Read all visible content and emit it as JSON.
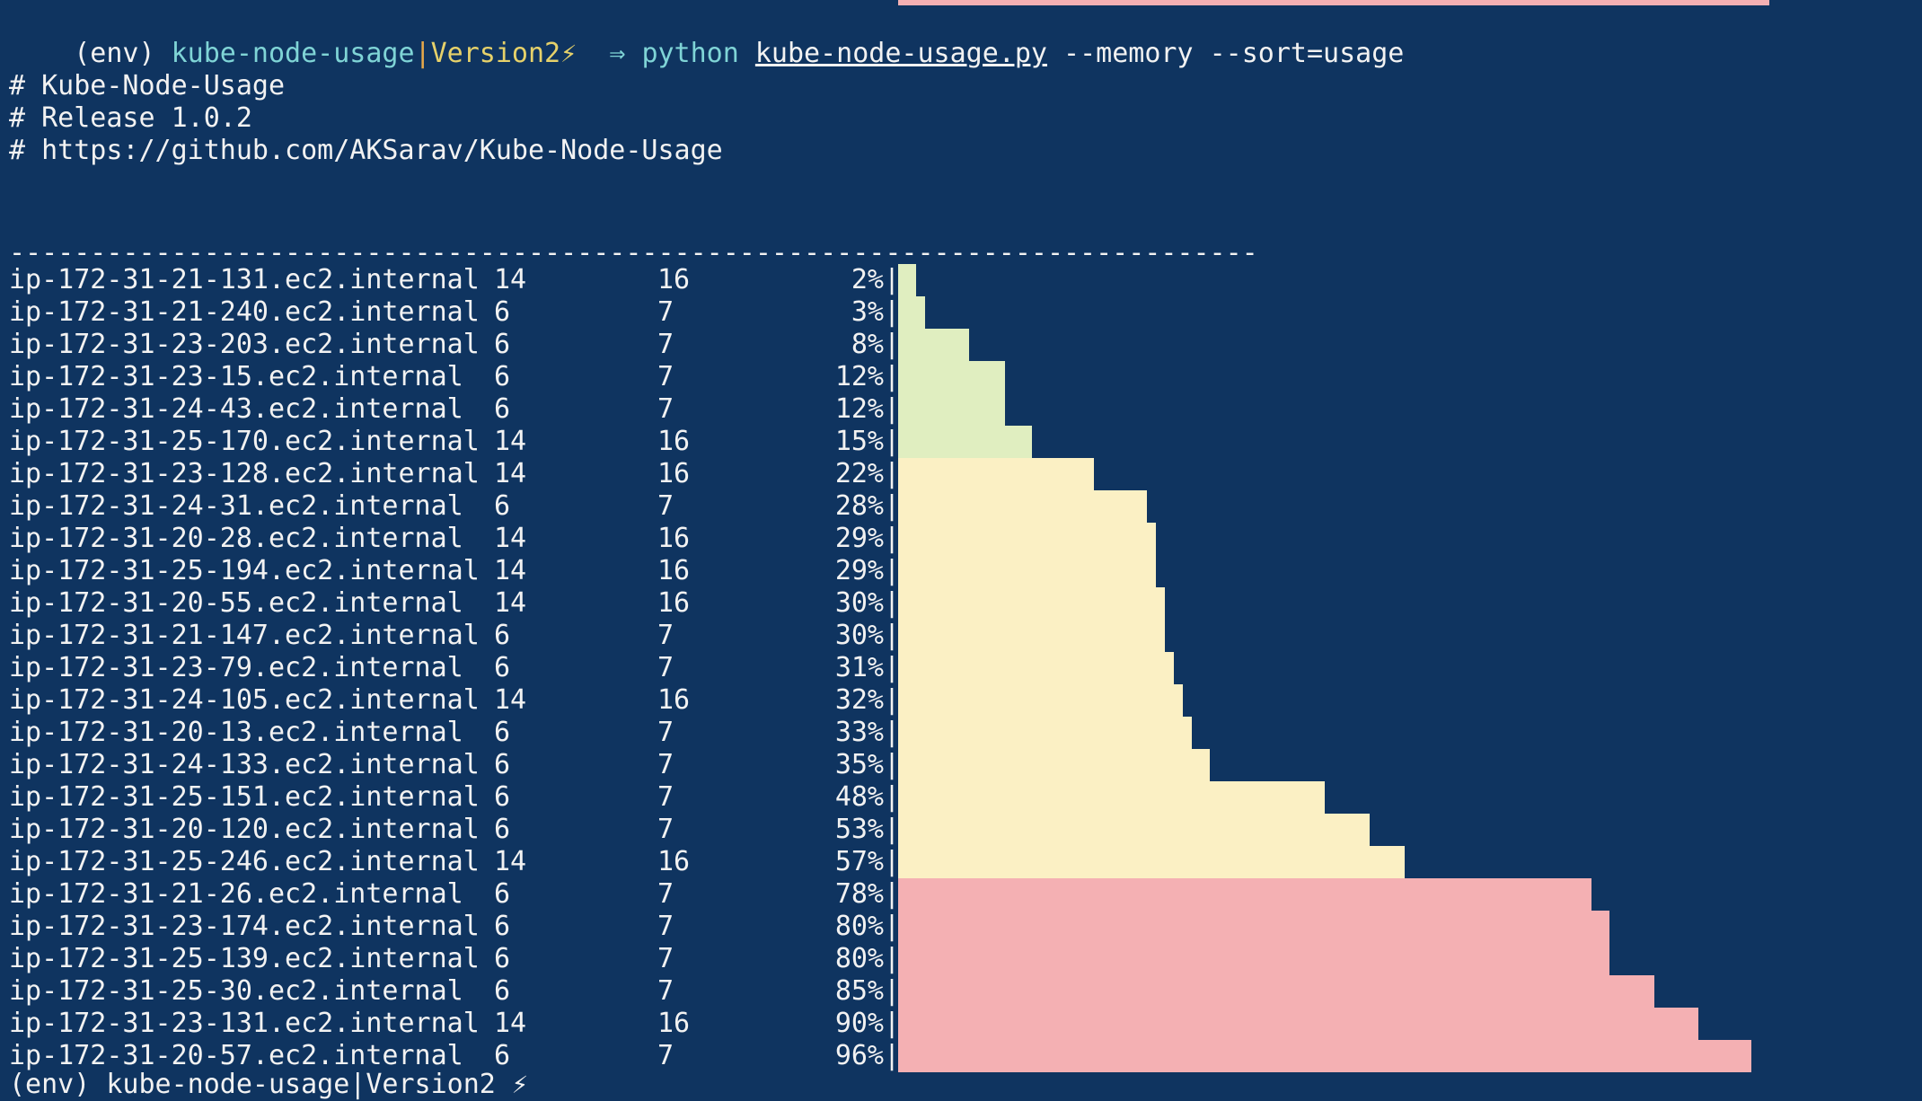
{
  "prompt": {
    "env": "(env)",
    "dir": "kube-node-usage",
    "sep": "|",
    "branch": "Version2",
    "bolt": "⚡",
    "arrow": "⇒",
    "cmd": "python",
    "file": "kube-node-usage.py",
    "args": "--memory --sort=usage"
  },
  "header": {
    "line1": "# Kube-Node-Usage",
    "line2": "# Release 1.0.2",
    "line3": "# https://github.com/AKSarav/Kube-Node-Usage"
  },
  "separator": "-----------------------------------------------------------------------------",
  "colors": {
    "background": "#0f3460",
    "low": "#e0eec0",
    "medium": "#fbf0c4",
    "high": "#f4b0b3"
  },
  "rows": [
    {
      "name": "ip-172-31-21-131.ec2.internal",
      "used": "14",
      "total": "16",
      "pct": "2%",
      "level": "low",
      "value": 2
    },
    {
      "name": "ip-172-31-21-240.ec2.internal",
      "used": "6",
      "total": "7",
      "pct": "3%",
      "level": "low",
      "value": 3
    },
    {
      "name": "ip-172-31-23-203.ec2.internal",
      "used": "6",
      "total": "7",
      "pct": "8%",
      "level": "low",
      "value": 8
    },
    {
      "name": "ip-172-31-23-15.ec2.internal",
      "used": "6",
      "total": "7",
      "pct": "12%",
      "level": "low",
      "value": 12
    },
    {
      "name": "ip-172-31-24-43.ec2.internal",
      "used": "6",
      "total": "7",
      "pct": "12%",
      "level": "low",
      "value": 12
    },
    {
      "name": "ip-172-31-25-170.ec2.internal",
      "used": "14",
      "total": "16",
      "pct": "15%",
      "level": "low",
      "value": 15
    },
    {
      "name": "ip-172-31-23-128.ec2.internal",
      "used": "14",
      "total": "16",
      "pct": "22%",
      "level": "medium",
      "value": 22
    },
    {
      "name": "ip-172-31-24-31.ec2.internal",
      "used": "6",
      "total": "7",
      "pct": "28%",
      "level": "medium",
      "value": 28
    },
    {
      "name": "ip-172-31-20-28.ec2.internal",
      "used": "14",
      "total": "16",
      "pct": "29%",
      "level": "medium",
      "value": 29
    },
    {
      "name": "ip-172-31-25-194.ec2.internal",
      "used": "14",
      "total": "16",
      "pct": "29%",
      "level": "medium",
      "value": 29
    },
    {
      "name": "ip-172-31-20-55.ec2.internal",
      "used": "14",
      "total": "16",
      "pct": "30%",
      "level": "medium",
      "value": 30
    },
    {
      "name": "ip-172-31-21-147.ec2.internal",
      "used": "6",
      "total": "7",
      "pct": "30%",
      "level": "medium",
      "value": 30
    },
    {
      "name": "ip-172-31-23-79.ec2.internal",
      "used": "6",
      "total": "7",
      "pct": "31%",
      "level": "medium",
      "value": 31
    },
    {
      "name": "ip-172-31-24-105.ec2.internal",
      "used": "14",
      "total": "16",
      "pct": "32%",
      "level": "medium",
      "value": 32
    },
    {
      "name": "ip-172-31-20-13.ec2.internal",
      "used": "6",
      "total": "7",
      "pct": "33%",
      "level": "medium",
      "value": 33
    },
    {
      "name": "ip-172-31-24-133.ec2.internal",
      "used": "6",
      "total": "7",
      "pct": "35%",
      "level": "medium",
      "value": 35
    },
    {
      "name": "ip-172-31-25-151.ec2.internal",
      "used": "6",
      "total": "7",
      "pct": "48%",
      "level": "medium",
      "value": 48
    },
    {
      "name": "ip-172-31-20-120.ec2.internal",
      "used": "6",
      "total": "7",
      "pct": "53%",
      "level": "medium",
      "value": 53
    },
    {
      "name": "ip-172-31-25-246.ec2.internal",
      "used": "14",
      "total": "16",
      "pct": "57%",
      "level": "medium",
      "value": 57
    },
    {
      "name": "ip-172-31-21-26.ec2.internal",
      "used": "6",
      "total": "7",
      "pct": "78%",
      "level": "high",
      "value": 78
    },
    {
      "name": "ip-172-31-23-174.ec2.internal",
      "used": "6",
      "total": "7",
      "pct": "80%",
      "level": "high",
      "value": 80
    },
    {
      "name": "ip-172-31-25-139.ec2.internal",
      "used": "6",
      "total": "7",
      "pct": "80%",
      "level": "high",
      "value": 80
    },
    {
      "name": "ip-172-31-25-30.ec2.internal",
      "used": "6",
      "total": "7",
      "pct": "85%",
      "level": "high",
      "value": 85
    },
    {
      "name": "ip-172-31-23-131.ec2.internal",
      "used": "14",
      "total": "16",
      "pct": "90%",
      "level": "high",
      "value": 90
    },
    {
      "name": "ip-172-31-20-57.ec2.internal",
      "used": "6",
      "total": "7",
      "pct": "96%",
      "level": "high",
      "value": 96
    }
  ],
  "pipe": "|",
  "bottom_prompt": "(env) kube-node-usage|Version2 ⚡"
}
